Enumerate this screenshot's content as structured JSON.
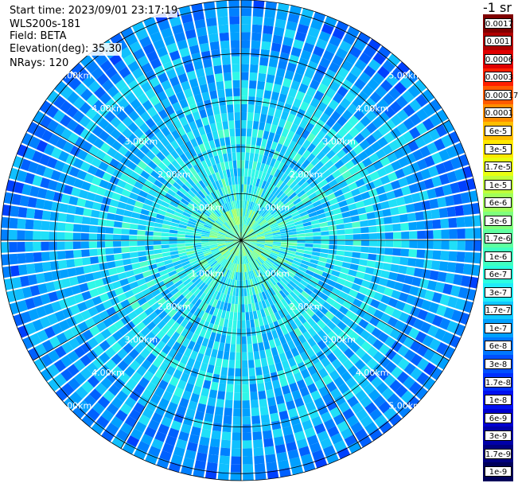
{
  "info": {
    "start_time": "Start time: 2023/09/01 23:17:19",
    "device": "WLS200s-181",
    "field": "Field: BETA",
    "elevation": "Elevation(deg): 35.30",
    "nrays": "NRays: 120"
  },
  "colorbar": {
    "title": "-1 sr",
    "labels": [
      "0.0017",
      "0.001",
      "0.0006",
      "0.0003",
      "0.00017",
      "0.0001",
      "6e-5",
      "3e-5",
      "1.7e-5",
      "1e-5",
      "6e-6",
      "3e-6",
      "1.7e-6",
      "1e-6",
      "6e-7",
      "3e-7",
      "1.7e-7",
      "1e-7",
      "6e-8",
      "3e-8",
      "1.7e-8",
      "1e-8",
      "6e-9",
      "3e-9",
      "1.7e-9",
      "1e-9"
    ],
    "colors": [
      "#7f0000",
      "#b00000",
      "#e00000",
      "#ff2000",
      "#ff5a00",
      "#ff8c00",
      "#ffbe00",
      "#ffe800",
      "#e8ff10",
      "#c0ff3a",
      "#a0ff5a",
      "#80ff7c",
      "#5effa0",
      "#40ffc0",
      "#2cffe0",
      "#20ecf8",
      "#10c8ff",
      "#00a0ff",
      "#0078ff",
      "#0050ff",
      "#0030ff",
      "#0010f0",
      "#0000d0",
      "#0000a8",
      "#000080",
      "#00005a"
    ]
  },
  "rings": {
    "labels": [
      "1.00km",
      "2.00km",
      "3.00km",
      "4.00km",
      "5.00km"
    ]
  }
}
